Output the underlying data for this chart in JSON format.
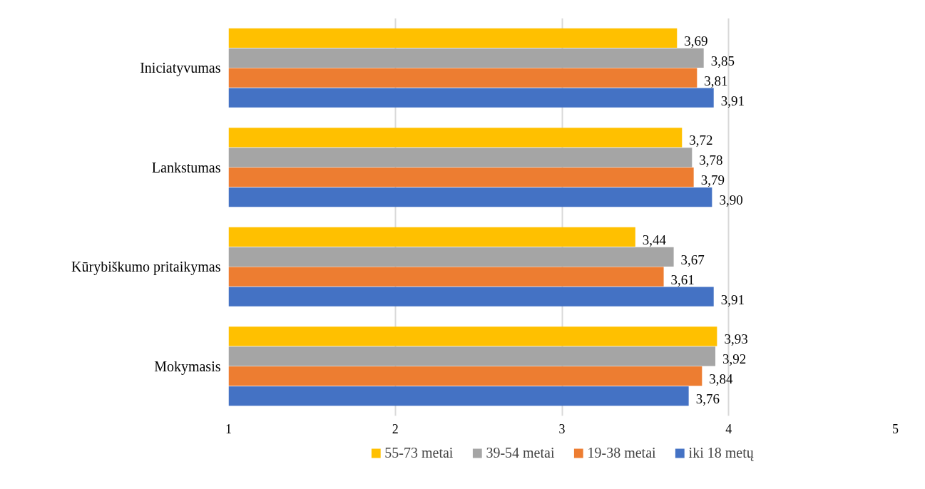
{
  "chart_data": {
    "type": "bar",
    "orientation": "horizontal",
    "categories": [
      "Iniciatyvumas",
      "Lankstumas",
      "Kūrybiškumo pritaikymas",
      "Mokymasis"
    ],
    "series": [
      {
        "name": "55-73 metai",
        "color": "#ffc000",
        "values": [
          3.69,
          3.72,
          3.44,
          3.93
        ],
        "value_labels": [
          "3,69",
          "3,72",
          "3,44",
          "3,93"
        ]
      },
      {
        "name": "39-54 metai",
        "color": "#a5a5a5",
        "values": [
          3.85,
          3.78,
          3.67,
          3.92
        ],
        "value_labels": [
          "3,85",
          "3,78",
          "3,67",
          "3,92"
        ]
      },
      {
        "name": "19-38 metai",
        "color": "#ed7d31",
        "values": [
          3.81,
          3.79,
          3.61,
          3.84
        ],
        "value_labels": [
          "3,81",
          "3,79",
          "3,61",
          "3,84"
        ]
      },
      {
        "name": "iki 18 metų",
        "color": "#4472c4",
        "values": [
          3.91,
          3.9,
          3.91,
          3.76
        ],
        "value_labels": [
          "3,91",
          "3,90",
          "3,91",
          "3,76"
        ]
      }
    ],
    "xlim": [
      1,
      5
    ],
    "xticks": [
      1,
      2,
      3,
      4,
      5
    ],
    "grid": "x",
    "legend": "bottom"
  }
}
